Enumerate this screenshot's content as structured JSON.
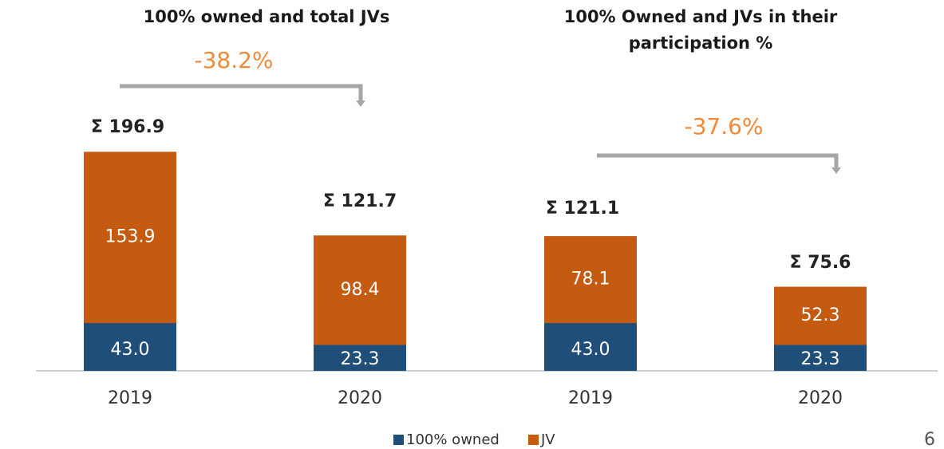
{
  "chart_data": {
    "type": "stacked_bar",
    "group_titles": [
      [
        "100% owned and total JVs"
      ],
      [
        "100% Owned and JVs in their",
        "participation %"
      ]
    ],
    "annotations": [
      "-38.2%",
      "-37.6%"
    ],
    "categories": [
      "2019",
      "2020",
      "2019",
      "2020"
    ],
    "totals": [
      "Σ 196.9",
      "Σ 121.7",
      "Σ 121.1",
      "Σ 75.6"
    ],
    "series": [
      {
        "name": "100% owned",
        "color": "#1f4e79",
        "values": [
          43,
          23.3,
          43,
          23.3
        ],
        "value_labels": [
          "43.0",
          "23.3",
          "43.0",
          "23.3"
        ]
      },
      {
        "name": "JV",
        "color": "#c55a11",
        "values": [
          153.9,
          98.4,
          78.1,
          52.3
        ],
        "value_labels": [
          "153.9",
          "98.4",
          "78.1",
          "52.3"
        ]
      }
    ],
    "ylim": [
      0,
      200
    ],
    "page_number": "6"
  }
}
